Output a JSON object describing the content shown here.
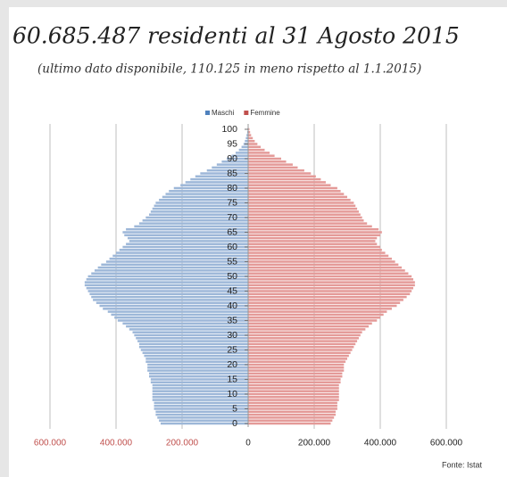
{
  "chart_data": {
    "type": "pyramid",
    "title": "60.685.487 residenti al 31 Agosto 2015",
    "subtitle": "(ultimo dato disponibile, 110.125 in meno rispetto al 1.1.2015)",
    "source": "Fonte: Istat",
    "y": [
      0,
      1,
      2,
      3,
      4,
      5,
      6,
      7,
      8,
      9,
      10,
      11,
      12,
      13,
      14,
      15,
      16,
      17,
      18,
      19,
      20,
      21,
      22,
      23,
      24,
      25,
      26,
      27,
      28,
      29,
      30,
      31,
      32,
      33,
      34,
      35,
      36,
      37,
      38,
      39,
      40,
      41,
      42,
      43,
      44,
      45,
      46,
      47,
      48,
      49,
      50,
      51,
      52,
      53,
      54,
      55,
      56,
      57,
      58,
      59,
      60,
      61,
      62,
      63,
      64,
      65,
      66,
      67,
      68,
      69,
      70,
      71,
      72,
      73,
      74,
      75,
      76,
      77,
      78,
      79,
      80,
      81,
      82,
      83,
      84,
      85,
      86,
      87,
      88,
      89,
      90,
      91,
      92,
      93,
      94,
      95,
      96,
      97,
      98,
      99,
      100
    ],
    "ylim": [
      0,
      100
    ],
    "yticks": [
      0,
      5,
      10,
      15,
      20,
      25,
      30,
      35,
      40,
      45,
      50,
      55,
      60,
      65,
      70,
      75,
      80,
      85,
      90,
      95,
      100
    ],
    "xlim": [
      -600000,
      600000
    ],
    "xticks": [
      {
        "value": -600000,
        "label": "600.000"
      },
      {
        "value": -400000,
        "label": "400.000"
      },
      {
        "value": -200000,
        "label": "200.000"
      },
      0,
      {
        "value": 200000,
        "label": "200.000"
      },
      {
        "value": 400000,
        "label": "400.000"
      },
      {
        "value": 600000,
        "label": "600.000"
      }
    ],
    "grid": true,
    "legend": "top",
    "series": [
      {
        "name": "Maschi",
        "color": "#9db7d8",
        "legend_color": "#4f81bd",
        "side": "left",
        "values": [
          265000,
          270000,
          275000,
          280000,
          280000,
          285000,
          285000,
          285000,
          290000,
          290000,
          290000,
          290000,
          290000,
          290000,
          295000,
          295000,
          300000,
          300000,
          305000,
          305000,
          305000,
          310000,
          310000,
          315000,
          320000,
          325000,
          330000,
          330000,
          335000,
          340000,
          345000,
          350000,
          360000,
          370000,
          380000,
          395000,
          405000,
          415000,
          425000,
          440000,
          450000,
          460000,
          470000,
          475000,
          480000,
          485000,
          490000,
          495000,
          495000,
          490000,
          485000,
          475000,
          465000,
          455000,
          445000,
          430000,
          420000,
          410000,
          400000,
          390000,
          380000,
          370000,
          360000,
          365000,
          375000,
          380000,
          370000,
          345000,
          330000,
          320000,
          310000,
          300000,
          295000,
          290000,
          285000,
          280000,
          270000,
          260000,
          250000,
          240000,
          225000,
          205000,
          190000,
          175000,
          160000,
          145000,
          125000,
          110000,
          95000,
          80000,
          65000,
          50000,
          38000,
          28000,
          20000,
          14000,
          10000,
          7000,
          5000,
          3000,
          2000
        ]
      },
      {
        "name": "Femmine",
        "color": "#e49a98",
        "legend_color": "#c0504d",
        "side": "right",
        "values": [
          250000,
          255000,
          260000,
          265000,
          265000,
          270000,
          270000,
          270000,
          275000,
          275000,
          275000,
          275000,
          275000,
          275000,
          280000,
          280000,
          285000,
          285000,
          290000,
          290000,
          290000,
          295000,
          300000,
          305000,
          310000,
          315000,
          320000,
          325000,
          330000,
          335000,
          340000,
          345000,
          355000,
          365000,
          375000,
          390000,
          400000,
          410000,
          420000,
          435000,
          450000,
          460000,
          470000,
          480000,
          490000,
          495000,
          500000,
          505000,
          505000,
          500000,
          495000,
          485000,
          475000,
          465000,
          455000,
          445000,
          435000,
          425000,
          415000,
          405000,
          400000,
          390000,
          385000,
          390000,
          400000,
          405000,
          395000,
          375000,
          360000,
          350000,
          345000,
          340000,
          335000,
          330000,
          325000,
          320000,
          310000,
          300000,
          290000,
          280000,
          270000,
          250000,
          235000,
          220000,
          205000,
          190000,
          170000,
          150000,
          135000,
          115000,
          100000,
          80000,
          65000,
          50000,
          38000,
          28000,
          20000,
          14000,
          9000,
          6000,
          4000
        ]
      }
    ]
  }
}
